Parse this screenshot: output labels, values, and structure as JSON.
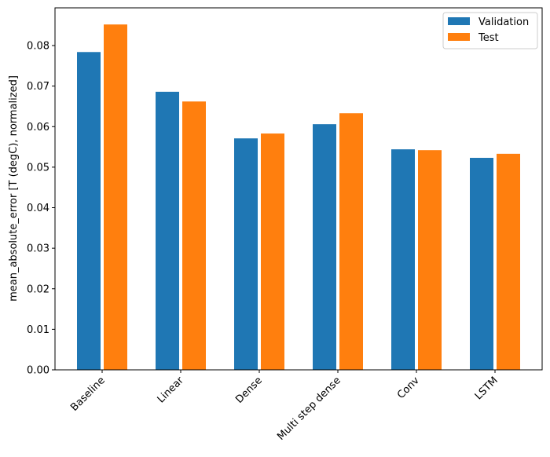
{
  "chart_data": {
    "type": "bar",
    "title": "",
    "xlabel": "",
    "ylabel": "mean_absolute_error [T (degC), normalized]",
    "categories": [
      "Baseline",
      "Linear",
      "Dense",
      "Multi step dense",
      "Conv",
      "LSTM"
    ],
    "series": [
      {
        "name": "Validation",
        "color": "#1f77b4",
        "values": [
          0.0784,
          0.0686,
          0.0571,
          0.0606,
          0.0544,
          0.0523
        ]
      },
      {
        "name": "Test",
        "color": "#ff7f0e",
        "values": [
          0.0852,
          0.0662,
          0.0583,
          0.0633,
          0.0542,
          0.0533
        ]
      }
    ],
    "ylim": [
      0,
      0.0893
    ],
    "yticks": [
      "0.00",
      "0.01",
      "0.02",
      "0.03",
      "0.04",
      "0.05",
      "0.06",
      "0.07",
      "0.08"
    ],
    "grid": false,
    "legend_position": "top-right"
  }
}
